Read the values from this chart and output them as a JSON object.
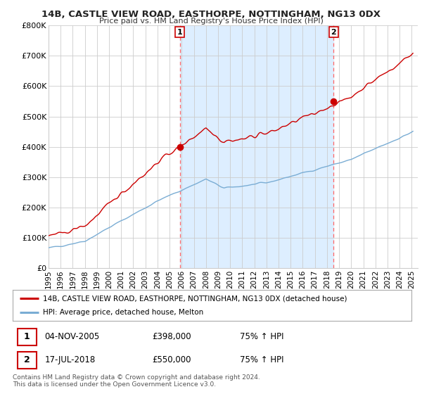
{
  "title1": "14B, CASTLE VIEW ROAD, EASTHORPE, NOTTINGHAM, NG13 0DX",
  "title2": "Price paid vs. HM Land Registry's House Price Index (HPI)",
  "ylim": [
    0,
    800000
  ],
  "yticks": [
    0,
    100000,
    200000,
    300000,
    400000,
    500000,
    600000,
    700000,
    800000
  ],
  "ytick_labels": [
    "£0",
    "£100K",
    "£200K",
    "£300K",
    "£400K",
    "£500K",
    "£600K",
    "£700K",
    "£800K"
  ],
  "sale1_date": 2005.84,
  "sale1_price": 398000,
  "sale2_date": 2018.54,
  "sale2_price": 550000,
  "red_line_color": "#cc0000",
  "blue_line_color": "#7aadd4",
  "shade_color": "#ddeeff",
  "vline_color": "#ff6666",
  "grid_color": "#cccccc",
  "background_color": "#ffffff",
  "legend_label_red": "14B, CASTLE VIEW ROAD, EASTHORPE, NOTTINGHAM, NG13 0DX (detached house)",
  "legend_label_blue": "HPI: Average price, detached house, Melton",
  "annotation1_date": "04-NOV-2005",
  "annotation1_price": "£398,000",
  "annotation1_hpi": "75% ↑ HPI",
  "annotation2_date": "17-JUL-2018",
  "annotation2_price": "£550,000",
  "annotation2_hpi": "75% ↑ HPI",
  "footnote": "Contains HM Land Registry data © Crown copyright and database right 2024.\nThis data is licensed under the Open Government Licence v3.0."
}
